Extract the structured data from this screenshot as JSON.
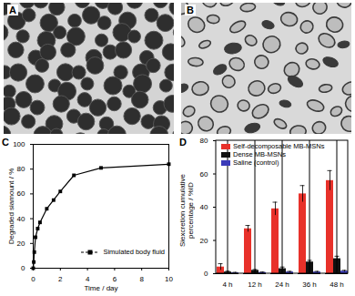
{
  "images": [
    {
      "label": "A"
    },
    {
      "label": "B"
    }
  ],
  "chart_data": [
    {
      "type": "line",
      "annotations": [
        "C"
      ],
      "x_label": "Time / day",
      "y_label": "Degraded siamount / %",
      "x": [
        0,
        0.04,
        0.08,
        0.17,
        0.33,
        0.5,
        1,
        1.5,
        2,
        3,
        5,
        10
      ],
      "series": [
        {
          "name": "Simulated body fluid",
          "color": "#000000",
          "marker": "square",
          "values": [
            0,
            5,
            13,
            25,
            32,
            37,
            48,
            55,
            62,
            75,
            81,
            84
          ]
        }
      ],
      "xlim": [
        0,
        10
      ],
      "xticks": [
        0,
        2,
        4,
        6,
        8,
        10
      ],
      "ylim": [
        0,
        100
      ],
      "yticks": [
        0,
        20,
        40,
        60,
        80,
        100
      ],
      "legend": "lower right"
    },
    {
      "type": "bar",
      "annotations": [
        "D"
      ],
      "y_label": "Siexcretion cumulative percentage / %ID",
      "categories": [
        "4 h",
        "12 h",
        "24 h",
        "36 h",
        "48 h"
      ],
      "series": [
        {
          "name": "Self-decomposable MB-MSNs",
          "color": "#e8312a",
          "values": [
            4,
            27,
            39,
            48,
            56
          ],
          "errors": [
            2,
            2,
            4,
            5,
            6
          ]
        },
        {
          "name": "Dense MB-MSNs",
          "color": "#111111",
          "values": [
            1,
            2,
            3,
            7,
            9
          ],
          "errors": [
            0.5,
            0.5,
            1,
            1,
            1.5
          ]
        },
        {
          "name": "Saline (control)",
          "color": "#3a3ab8",
          "values": [
            0.5,
            0.7,
            1,
            1,
            1.5
          ],
          "errors": [
            0.3,
            0.3,
            0.4,
            0.4,
            0.5
          ]
        }
      ],
      "ylim": [
        0,
        80
      ],
      "yticks": [
        0,
        20,
        40,
        60,
        80
      ],
      "legend": "upper left"
    }
  ]
}
